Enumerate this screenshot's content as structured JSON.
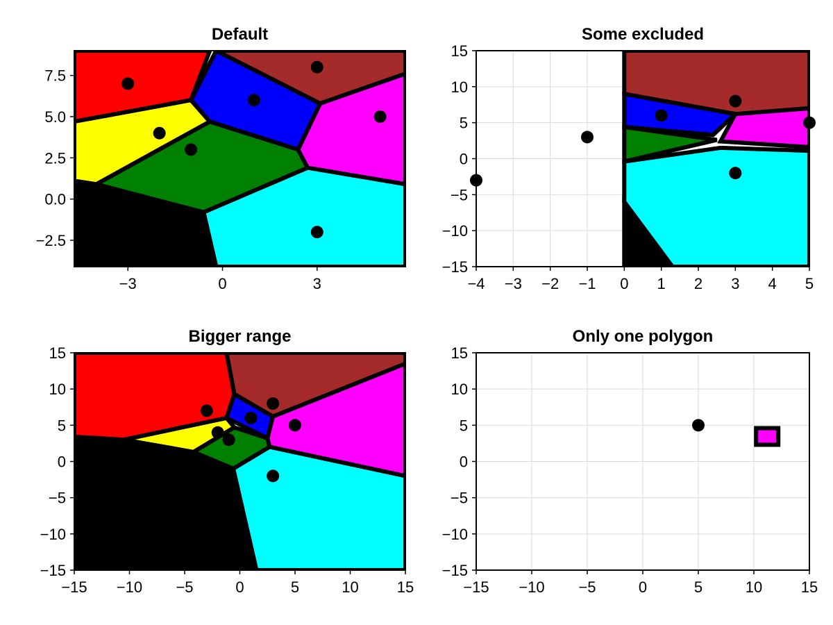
{
  "chart_data": [
    {
      "type": "voronoi",
      "title": "Default",
      "xlim": [
        -4.7,
        5.8
      ],
      "ylim": [
        -4.1,
        9.0
      ],
      "grid": false,
      "xticks": [
        {
          "v": -3,
          "label": "−3"
        },
        {
          "v": 0,
          "label": "0"
        },
        {
          "v": 3,
          "label": "3"
        }
      ],
      "yticks": [
        {
          "v": -2.5,
          "label": "−2.5"
        },
        {
          "v": 0.0,
          "label": "0.0"
        },
        {
          "v": 2.5,
          "label": "2.5"
        },
        {
          "v": 5.0,
          "label": "5.0"
        },
        {
          "v": 7.5,
          "label": "7.5"
        }
      ],
      "points": [
        [
          -3,
          7
        ],
        [
          -2,
          4
        ],
        [
          -1,
          3
        ],
        [
          1,
          6
        ],
        [
          3,
          8
        ],
        [
          5,
          5
        ],
        [
          3,
          -2
        ]
      ],
      "cells": [
        {
          "color": "#ff0000",
          "vertices": [
            [
              -4.7,
              4.7
            ],
            [
              -1.0,
              6.0
            ],
            [
              -0.4,
              9.0
            ],
            [
              -4.7,
              9.0
            ]
          ]
        },
        {
          "color": "#ffff00",
          "vertices": [
            [
              -4.7,
              1.1
            ],
            [
              -4.0,
              0.9
            ],
            [
              -0.4,
              4.7
            ],
            [
              -1.0,
              6.0
            ],
            [
              -4.7,
              4.7
            ]
          ]
        },
        {
          "color": "#008000",
          "vertices": [
            [
              -4.0,
              0.9
            ],
            [
              -0.6,
              -0.8
            ],
            [
              2.7,
              1.9
            ],
            [
              2.4,
              3.0
            ],
            [
              -0.4,
              4.7
            ]
          ]
        },
        {
          "color": "#0000ff",
          "vertices": [
            [
              -1.0,
              6.0
            ],
            [
              -0.4,
              4.7
            ],
            [
              2.4,
              3.0
            ],
            [
              3.1,
              5.8
            ],
            [
              -0.2,
              9.0
            ]
          ]
        },
        {
          "color": "#a52a2a",
          "vertices": [
            [
              -0.2,
              9.0
            ],
            [
              5.8,
              9.0
            ],
            [
              5.8,
              7.6
            ],
            [
              3.1,
              5.8
            ]
          ]
        },
        {
          "color": "#ff00ff",
          "vertices": [
            [
              3.1,
              5.8
            ],
            [
              5.8,
              7.6
            ],
            [
              5.8,
              0.9
            ],
            [
              2.7,
              1.9
            ],
            [
              2.4,
              3.0
            ]
          ]
        },
        {
          "color": "#00ffff",
          "vertices": [
            [
              -0.6,
              -0.8
            ],
            [
              2.7,
              1.9
            ],
            [
              5.8,
              0.9
            ],
            [
              5.8,
              -4.1
            ],
            [
              -0.2,
              -4.1
            ]
          ]
        },
        {
          "color": "#000000",
          "vertices": [
            [
              -4.7,
              -4.1
            ],
            [
              -0.2,
              -4.1
            ],
            [
              -0.6,
              -0.8
            ],
            [
              -4.0,
              0.9
            ],
            [
              -4.7,
              1.1
            ]
          ]
        }
      ]
    },
    {
      "type": "voronoi",
      "title": "Some excluded",
      "xlim": [
        -4,
        5
      ],
      "ylim": [
        -15,
        15
      ],
      "grid": true,
      "xticks": [
        {
          "v": -4,
          "label": "−4"
        },
        {
          "v": -3,
          "label": "−3"
        },
        {
          "v": -2,
          "label": "−2"
        },
        {
          "v": -1,
          "label": "−1"
        },
        {
          "v": 0,
          "label": "0"
        },
        {
          "v": 1,
          "label": "1"
        },
        {
          "v": 2,
          "label": "2"
        },
        {
          "v": 3,
          "label": "3"
        },
        {
          "v": 4,
          "label": "4"
        },
        {
          "v": 5,
          "label": "5"
        }
      ],
      "yticks": [
        {
          "v": -15,
          "label": "−15"
        },
        {
          "v": -10,
          "label": "−10"
        },
        {
          "v": -5,
          "label": "−5"
        },
        {
          "v": 0,
          "label": "0"
        },
        {
          "v": 5,
          "label": "5"
        },
        {
          "v": 10,
          "label": "10"
        },
        {
          "v": 15,
          "label": "15"
        }
      ],
      "points": [
        [
          -4,
          -3
        ],
        [
          -1,
          3
        ],
        [
          1,
          6
        ],
        [
          3,
          8
        ],
        [
          5,
          5
        ],
        [
          3,
          -2
        ]
      ],
      "cells": [
        {
          "color": "#a52a2a",
          "vertices": [
            [
              0,
              15
            ],
            [
              5,
              15
            ],
            [
              5,
              7.0
            ],
            [
              3.0,
              6.2
            ],
            [
              0,
              9.0
            ]
          ]
        },
        {
          "color": "#0000ff",
          "vertices": [
            [
              0,
              9.0
            ],
            [
              3.0,
              6.2
            ],
            [
              2.4,
              3.3
            ],
            [
              0,
              4.4
            ]
          ]
        },
        {
          "color": "#ff00ff",
          "vertices": [
            [
              3.0,
              6.2
            ],
            [
              5,
              7.0
            ],
            [
              5,
              1.6
            ],
            [
              2.6,
              2.4
            ]
          ]
        },
        {
          "color": "#008000",
          "vertices": [
            [
              0,
              4.4
            ],
            [
              2.5,
              2.6
            ],
            [
              0,
              -0.4
            ]
          ]
        },
        {
          "color": "#00ffff",
          "vertices": [
            [
              0,
              -0.4
            ],
            [
              2.6,
              1.5
            ],
            [
              5,
              1.1
            ],
            [
              5,
              -15
            ],
            [
              1.3,
              -15
            ],
            [
              0,
              -6.0
            ]
          ]
        },
        {
          "color": "#000000",
          "vertices": [
            [
              0,
              -6.0
            ],
            [
              1.3,
              -15
            ],
            [
              0,
              -15
            ]
          ]
        }
      ]
    },
    {
      "type": "voronoi",
      "title": "Bigger range",
      "xlim": [
        -15,
        15
      ],
      "ylim": [
        -15,
        15
      ],
      "grid": false,
      "xticks": [
        {
          "v": -15,
          "label": "−15"
        },
        {
          "v": -10,
          "label": "−10"
        },
        {
          "v": -5,
          "label": "−5"
        },
        {
          "v": 0,
          "label": "0"
        },
        {
          "v": 5,
          "label": "5"
        },
        {
          "v": 10,
          "label": "10"
        },
        {
          "v": 15,
          "label": "15"
        }
      ],
      "yticks": [
        {
          "v": -15,
          "label": "−15"
        },
        {
          "v": -10,
          "label": "−10"
        },
        {
          "v": -5,
          "label": "−5"
        },
        {
          "v": 0,
          "label": "0"
        },
        {
          "v": 5,
          "label": "5"
        },
        {
          "v": 10,
          "label": "10"
        },
        {
          "v": 15,
          "label": "15"
        }
      ],
      "points": [
        [
          -3,
          7
        ],
        [
          -2,
          4
        ],
        [
          -1,
          3
        ],
        [
          1,
          6
        ],
        [
          3,
          8
        ],
        [
          5,
          5
        ],
        [
          3,
          -2
        ]
      ],
      "cells": [
        {
          "color": "#ff0000",
          "vertices": [
            [
              -15,
              15
            ],
            [
              -1.2,
              15
            ],
            [
              -0.5,
              9.3
            ],
            [
              -1.2,
              6.0
            ],
            [
              -10.5,
              3.0
            ],
            [
              -15,
              3.4
            ]
          ]
        },
        {
          "color": "#a52a2a",
          "vertices": [
            [
              -1.2,
              15
            ],
            [
              15,
              15
            ],
            [
              15,
              13.5
            ],
            [
              3.0,
              6.2
            ],
            [
              -0.5,
              9.3
            ]
          ]
        },
        {
          "color": "#0000ff",
          "vertices": [
            [
              -0.5,
              9.3
            ],
            [
              3.0,
              6.2
            ],
            [
              2.5,
              3.2
            ],
            [
              -1.2,
              6.0
            ]
          ]
        },
        {
          "color": "#ff00ff",
          "vertices": [
            [
              3.0,
              6.2
            ],
            [
              15,
              13.5
            ],
            [
              15,
              -2.0
            ],
            [
              2.7,
              2.0
            ],
            [
              2.5,
              3.2
            ]
          ]
        },
        {
          "color": "#ffff00",
          "vertices": [
            [
              -10.5,
              3.0
            ],
            [
              -1.2,
              6.0
            ],
            [
              -0.5,
              4.7
            ],
            [
              -4.2,
              1.3
            ]
          ]
        },
        {
          "color": "#008000",
          "vertices": [
            [
              -4.2,
              1.3
            ],
            [
              -0.5,
              4.7
            ],
            [
              2.5,
              3.2
            ],
            [
              2.7,
              2.0
            ],
            [
              -0.6,
              -1.0
            ]
          ]
        },
        {
          "color": "#00ffff",
          "vertices": [
            [
              -0.6,
              -1.0
            ],
            [
              2.7,
              2.0
            ],
            [
              15,
              -2.0
            ],
            [
              15,
              -15
            ],
            [
              1.5,
              -15
            ]
          ]
        },
        {
          "color": "#000000",
          "vertices": [
            [
              -15,
              3.4
            ],
            [
              -10.5,
              3.0
            ],
            [
              -4.2,
              1.3
            ],
            [
              -0.6,
              -1.0
            ],
            [
              1.5,
              -15
            ],
            [
              -15,
              -15
            ]
          ]
        }
      ]
    },
    {
      "type": "voronoi",
      "title": "Only one polygon",
      "xlim": [
        -15,
        15
      ],
      "ylim": [
        -15,
        15
      ],
      "grid": true,
      "xticks": [
        {
          "v": -15,
          "label": "−15"
        },
        {
          "v": -10,
          "label": "−10"
        },
        {
          "v": -5,
          "label": "−5"
        },
        {
          "v": 0,
          "label": "0"
        },
        {
          "v": 5,
          "label": "5"
        },
        {
          "v": 10,
          "label": "10"
        },
        {
          "v": 15,
          "label": "15"
        }
      ],
      "yticks": [
        {
          "v": -15,
          "label": "−15"
        },
        {
          "v": -10,
          "label": "−10"
        },
        {
          "v": -5,
          "label": "−5"
        },
        {
          "v": 0,
          "label": "0"
        },
        {
          "v": 5,
          "label": "5"
        },
        {
          "v": 10,
          "label": "10"
        },
        {
          "v": 15,
          "label": "15"
        }
      ],
      "points": [
        [
          5,
          5
        ]
      ],
      "cells": [
        {
          "color": "#ff00ff",
          "vertices": [
            [
              10.2,
              2.3
            ],
            [
              12.2,
              2.3
            ],
            [
              12.2,
              4.6
            ],
            [
              10.2,
              4.6
            ]
          ]
        }
      ]
    }
  ]
}
